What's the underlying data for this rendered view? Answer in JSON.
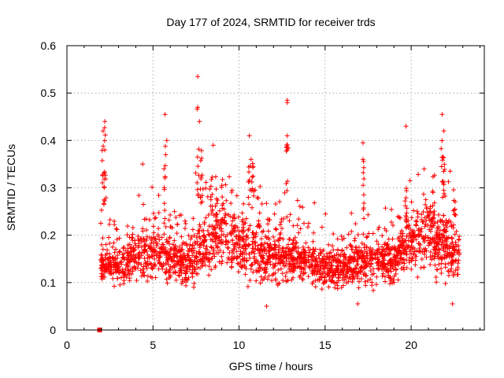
{
  "chart_data": {
    "type": "scatter",
    "title": "Day 177 of 2024, SRMTID for receiver trds",
    "xlabel": "GPS time / hours",
    "ylabel": "SRMTID / TECUs",
    "xlim": [
      0,
      24.25
    ],
    "ylim": [
      0,
      0.6
    ],
    "x_ticks": [
      0,
      5,
      10,
      15,
      20
    ],
    "x_tick_labels": [
      "0",
      "5",
      "10",
      "15",
      "20"
    ],
    "y_ticks": [
      0,
      0.1,
      0.2,
      0.3,
      0.4,
      0.5,
      0.6
    ],
    "y_tick_labels": [
      "0",
      "0.1",
      "0.2",
      "0.3",
      "0.4",
      "0.5",
      "0.6"
    ],
    "grid": true,
    "marker": "plus",
    "color": "#ff0000",
    "time_range": [
      1.95,
      22.8
    ],
    "note": "Several thousand individual points; listed values capture the envelope and notable outliers.",
    "special_points": [
      {
        "x": 1.9,
        "y": 0.0,
        "marker": "square"
      }
    ],
    "notable_points": [
      {
        "x": 2.1,
        "y": 0.42
      },
      {
        "x": 2.2,
        "y": 0.44
      },
      {
        "x": 2.2,
        "y": 0.38
      },
      {
        "x": 4.4,
        "y": 0.35
      },
      {
        "x": 5.7,
        "y": 0.455
      },
      {
        "x": 5.8,
        "y": 0.4
      },
      {
        "x": 7.6,
        "y": 0.535
      },
      {
        "x": 7.6,
        "y": 0.47
      },
      {
        "x": 7.7,
        "y": 0.44
      },
      {
        "x": 8.5,
        "y": 0.39
      },
      {
        "x": 10.6,
        "y": 0.41
      },
      {
        "x": 10.7,
        "y": 0.36
      },
      {
        "x": 12.8,
        "y": 0.485
      },
      {
        "x": 12.8,
        "y": 0.48
      },
      {
        "x": 12.8,
        "y": 0.41
      },
      {
        "x": 12.8,
        "y": 0.38
      },
      {
        "x": 17.2,
        "y": 0.395
      },
      {
        "x": 17.2,
        "y": 0.36
      },
      {
        "x": 19.7,
        "y": 0.43
      },
      {
        "x": 21.8,
        "y": 0.455
      },
      {
        "x": 21.9,
        "y": 0.42
      },
      {
        "x": 22.4,
        "y": 0.055
      },
      {
        "x": 11.6,
        "y": 0.05
      },
      {
        "x": 16.9,
        "y": 0.055
      }
    ],
    "envelope": {
      "hours": [
        2,
        3,
        4,
        5,
        6,
        7,
        8,
        9,
        10,
        11,
        12,
        13,
        14,
        15,
        16,
        17,
        18,
        19,
        20,
        21,
        22,
        22.8
      ],
      "typical_min": [
        0.09,
        0.08,
        0.07,
        0.08,
        0.08,
        0.07,
        0.08,
        0.08,
        0.08,
        0.07,
        0.07,
        0.07,
        0.08,
        0.07,
        0.07,
        0.06,
        0.07,
        0.08,
        0.09,
        0.08,
        0.07,
        0.08
      ],
      "typical_center": [
        0.14,
        0.13,
        0.15,
        0.16,
        0.15,
        0.14,
        0.17,
        0.2,
        0.17,
        0.16,
        0.15,
        0.15,
        0.14,
        0.13,
        0.13,
        0.14,
        0.15,
        0.14,
        0.19,
        0.19,
        0.17,
        0.15
      ],
      "typical_max": [
        0.3,
        0.24,
        0.27,
        0.3,
        0.3,
        0.27,
        0.36,
        0.34,
        0.3,
        0.34,
        0.28,
        0.3,
        0.26,
        0.24,
        0.24,
        0.28,
        0.24,
        0.25,
        0.3,
        0.31,
        0.34,
        0.27
      ]
    }
  }
}
